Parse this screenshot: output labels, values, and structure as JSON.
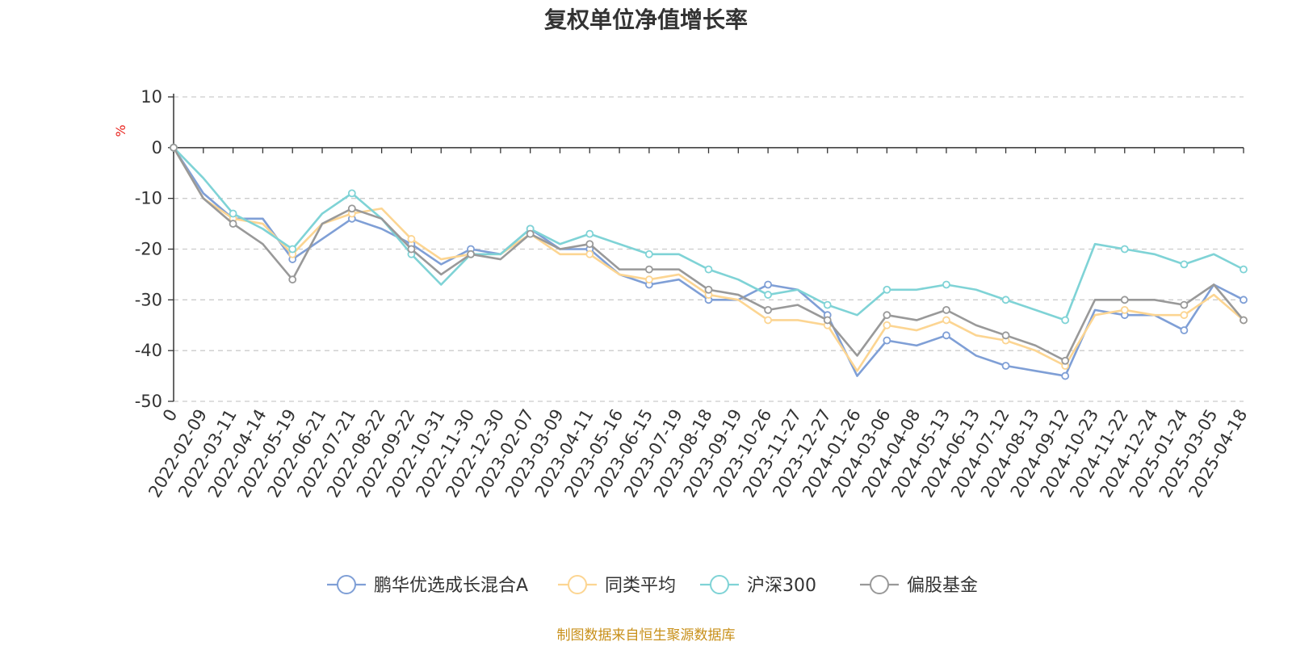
{
  "chart_data": {
    "type": "line",
    "title": "复权单位净值增长率",
    "ylabel": "%",
    "ylim": [
      -50,
      10
    ],
    "yticks": [
      10,
      0,
      -10,
      -20,
      -30,
      -40,
      -50
    ],
    "grid": true,
    "legend_position": "bottom",
    "x_start_label": "0",
    "x": [
      "2022-02-09",
      "2022-03-11",
      "2022-04-14",
      "2022-05-19",
      "2022-06-21",
      "2022-07-21",
      "2022-08-22",
      "2022-09-22",
      "2022-10-31",
      "2022-11-30",
      "2022-12-30",
      "2023-02-07",
      "2023-03-09",
      "2023-04-11",
      "2023-05-16",
      "2023-06-15",
      "2023-07-19",
      "2023-08-18",
      "2023-09-19",
      "2023-10-26",
      "2023-11-27",
      "2023-12-27",
      "2024-01-26",
      "2024-03-06",
      "2024-04-08",
      "2024-05-13",
      "2024-06-13",
      "2024-07-12",
      "2024-08-13",
      "2024-09-12",
      "2024-10-23",
      "2024-11-22",
      "2024-12-24",
      "2025-01-24",
      "2025-03-05",
      "2025-04-18"
    ],
    "series": [
      {
        "name": "鹏华优选成长混合A",
        "color": "#7f9fd6",
        "values": [
          -9,
          -14,
          -14,
          -22,
          -18,
          -14,
          -16,
          -19,
          -23,
          -20,
          -21,
          -16,
          -20,
          -20,
          -25,
          -27,
          -26,
          -30,
          -30,
          -27,
          -28,
          -33,
          -45,
          -38,
          -39,
          -37,
          -41,
          -43,
          -44,
          -45,
          -32,
          -33,
          -33,
          -36,
          -27,
          -30
        ]
      },
      {
        "name": "同类平均",
        "color": "#fcd592",
        "values": [
          -10,
          -14,
          -15,
          -21,
          -15,
          -13,
          -12,
          -18,
          -22,
          -21,
          -21,
          -17,
          -21,
          -21,
          -25,
          -26,
          -25,
          -29,
          -30,
          -34,
          -34,
          -35,
          -44,
          -35,
          -36,
          -34,
          -37,
          -38,
          -40,
          -43,
          -33,
          -32,
          -33,
          -33,
          -29,
          -34
        ]
      },
      {
        "name": "沪深300",
        "color": "#7fd3d6",
        "values": [
          -6,
          -13,
          -16,
          -20,
          -13,
          -9,
          -14,
          -21,
          -27,
          -21,
          -21,
          -16,
          -19,
          -17,
          -19,
          -21,
          -21,
          -24,
          -26,
          -29,
          -28,
          -31,
          -33,
          -28,
          -28,
          -27,
          -28,
          -30,
          -32,
          -34,
          -19,
          -20,
          -21,
          -23,
          -21,
          -24
        ]
      },
      {
        "name": "偏股基金",
        "color": "#999999",
        "values": [
          -10,
          -15,
          -19,
          -26,
          -15,
          -12,
          -14,
          -20,
          -25,
          -21,
          -22,
          -17,
          -20,
          -19,
          -24,
          -24,
          -24,
          -28,
          -29,
          -32,
          -31,
          -34,
          -41,
          -33,
          -34,
          -32,
          -35,
          -37,
          -39,
          -42,
          -30,
          -30,
          -30,
          -31,
          -27,
          -34
        ]
      }
    ]
  },
  "source": "制图数据来自恒生聚源数据库"
}
